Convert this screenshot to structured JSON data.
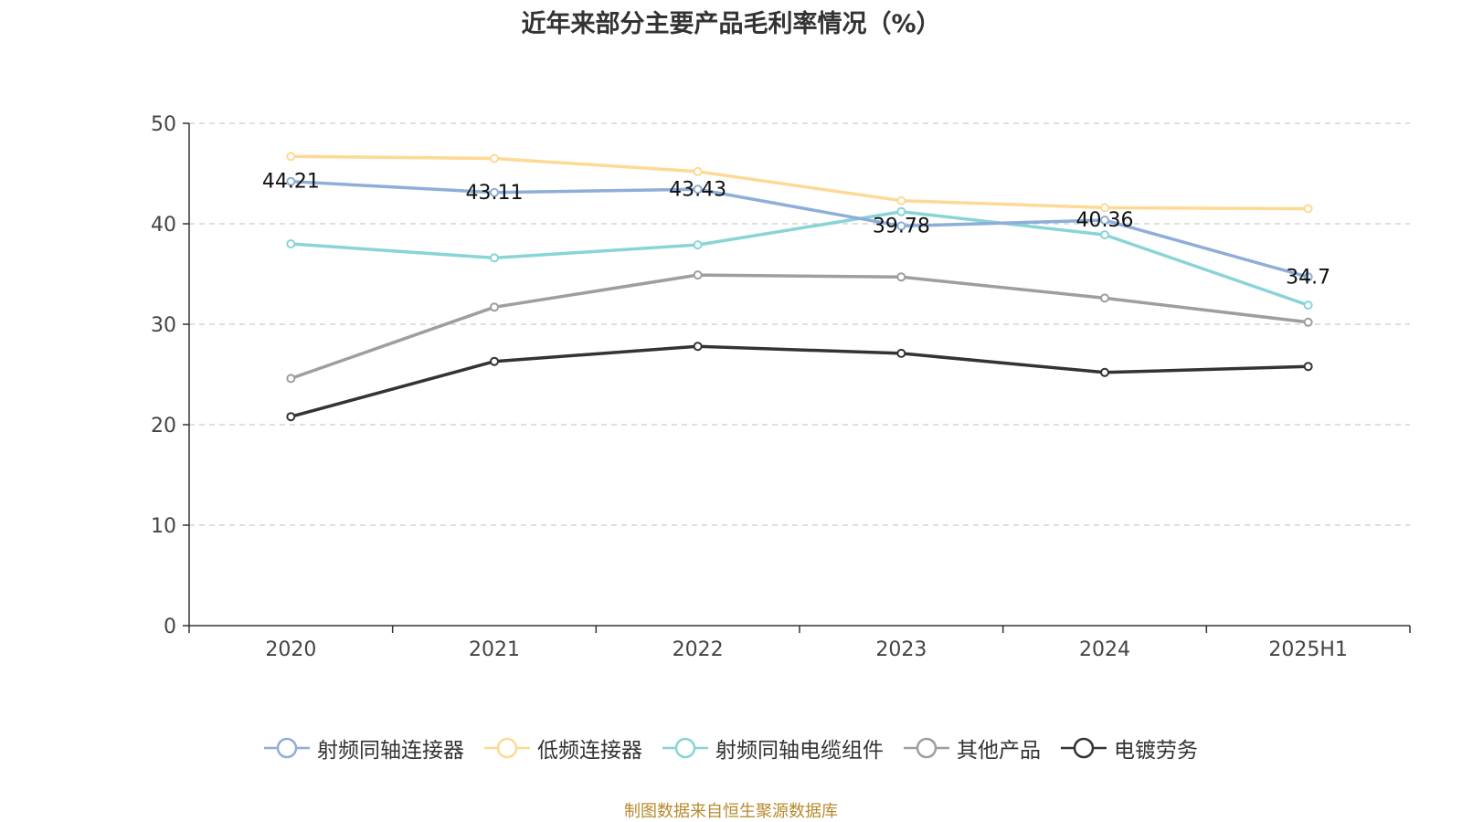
{
  "chart_data": {
    "type": "line",
    "title": "近年来部分主要产品毛利率情况（%）",
    "categories": [
      "2020",
      "2021",
      "2022",
      "2023",
      "2024",
      "2025H1"
    ],
    "ylim": [
      0,
      50
    ],
    "yticks": [
      0,
      10,
      20,
      30,
      40,
      50
    ],
    "grid": true,
    "legend_position": "bottom",
    "series": [
      {
        "name": "射频同轴连接器",
        "color": "#8eaed9",
        "values": [
          44.21,
          43.11,
          43.43,
          39.78,
          40.36,
          34.7
        ],
        "labels": [
          "44.21",
          "43.11",
          "43.43",
          "39.78",
          "40.36",
          "34.7"
        ]
      },
      {
        "name": "低频连接器",
        "color": "#fdd994",
        "values": [
          46.7,
          46.5,
          45.2,
          42.3,
          41.6,
          41.5
        ]
      },
      {
        "name": "射频同轴电缆组件",
        "color": "#88d4d6",
        "values": [
          38.0,
          36.6,
          37.9,
          41.2,
          38.9,
          31.9
        ]
      },
      {
        "name": "其他产品",
        "color": "#9e9e9e",
        "values": [
          24.6,
          31.7,
          34.9,
          34.7,
          32.6,
          30.2
        ]
      },
      {
        "name": "电镀劳务",
        "color": "#333333",
        "values": [
          20.8,
          26.3,
          27.8,
          27.1,
          25.2,
          25.8
        ]
      }
    ]
  },
  "source": "制图数据来自恒生聚源数据库"
}
